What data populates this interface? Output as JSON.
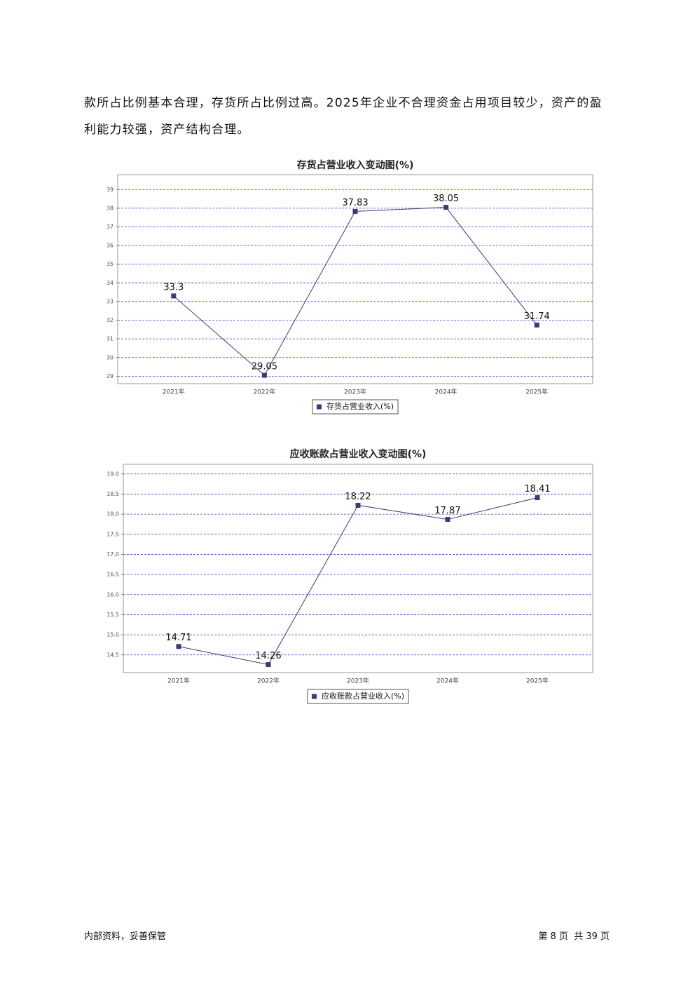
{
  "paragraph": "款所占比例基本合理，存货所占比例过高。2025年企业不合理资金占用项目较少，资产的盈利能力较强，资产结构合理。",
  "chart_data": [
    {
      "type": "line",
      "title": "存货占营业收入变动图(%)",
      "categories": [
        "2021年",
        "2022年",
        "2023年",
        "2024年",
        "2025年"
      ],
      "series": [
        {
          "name": "存货占营业收入(%)",
          "color": "#3b3b78",
          "values": [
            33.3,
            29.05,
            37.83,
            38.05,
            31.74
          ]
        }
      ],
      "ylim": [
        28.6,
        39.8
      ],
      "yticks": [
        29,
        30,
        31,
        32,
        33,
        34,
        35,
        36,
        37,
        38,
        39
      ],
      "grid": true,
      "legend": "bottom"
    },
    {
      "type": "line",
      "title": "应收账款占营业收入变动图(%)",
      "categories": [
        "2021年",
        "2022年",
        "2023年",
        "2024年",
        "2025年"
      ],
      "series": [
        {
          "name": "应收账款占营业收入(%)",
          "color": "#3b3b78",
          "values": [
            14.71,
            14.26,
            18.22,
            17.87,
            18.41
          ]
        }
      ],
      "ylim": [
        14.06,
        19.24
      ],
      "yticks": [
        14.5,
        {
          "value": 15,
          "label": "15.0"
        },
        15.5,
        {
          "value": 16,
          "label": "16.0"
        },
        16.5,
        {
          "value": 17,
          "label": "17.0"
        },
        17.5,
        {
          "value": 18,
          "label": "18.0"
        },
        18.5,
        {
          "value": 19,
          "label": "19.0"
        }
      ],
      "grid": true,
      "legend": "bottom"
    }
  ],
  "footer": {
    "left": "内部资料，妥善保管",
    "right": "第 8 页  共 39 页"
  }
}
